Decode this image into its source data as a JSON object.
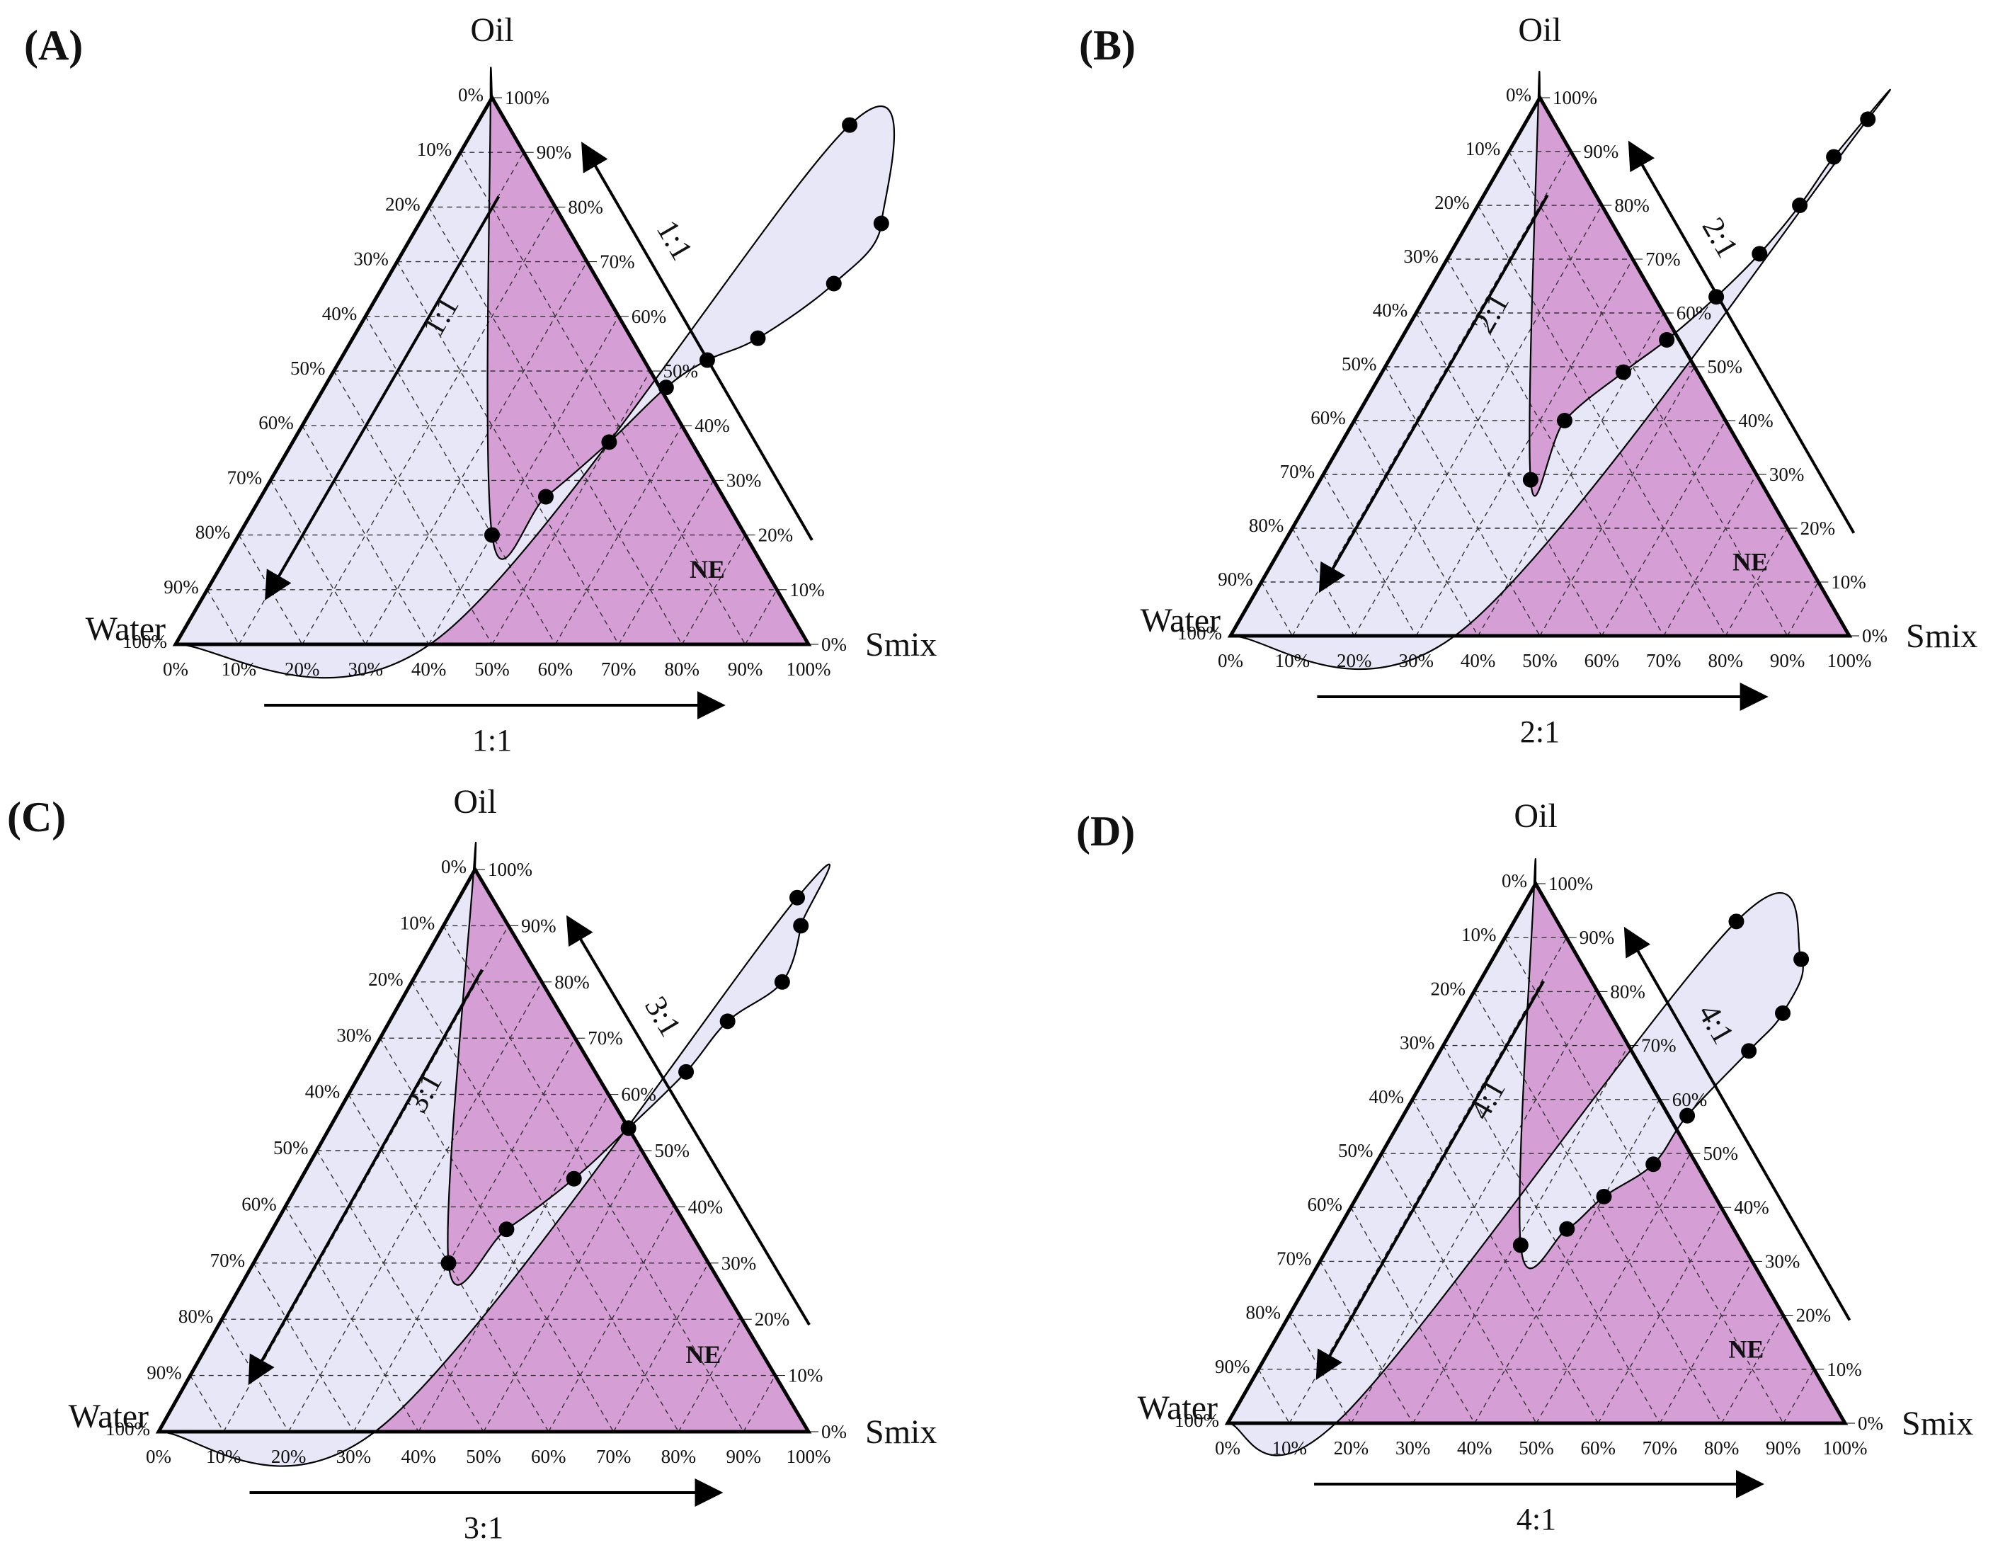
{
  "colors": {
    "single_phase_fill": "#d59fd6",
    "multi_phase_fill": "#e8e7f7",
    "outline": "#000000",
    "grid": "#333333",
    "point": "#000000"
  },
  "chart_data": [
    {
      "type": "ternary",
      "panel_label": "(A)",
      "vertices": {
        "top": "Oil",
        "left": "Water",
        "right": "Smix"
      },
      "tick_labels": [
        "0%",
        "10%",
        "20%",
        "30%",
        "40%",
        "50%",
        "60%",
        "70%",
        "80%",
        "90%",
        "100%"
      ],
      "ratio_label": "1:1",
      "region_label": "NE",
      "axis_ranges": {
        "oil": [
          0,
          100
        ],
        "water": [
          0,
          100
        ],
        "smix": [
          0,
          100
        ]
      },
      "grid": true,
      "boundary_points": [
        {
          "smix": 40,
          "oil": 20
        },
        {
          "smix": 45,
          "oil": 27
        },
        {
          "smix": 50,
          "oil": 37
        },
        {
          "smix": 54,
          "oil": 47
        },
        {
          "smix": 58,
          "oil": 52
        },
        {
          "smix": 64,
          "oil": 56
        },
        {
          "smix": 71,
          "oil": 66
        },
        {
          "smix": 73,
          "oil": 77
        },
        {
          "smix": 59,
          "oil": 95
        }
      ]
    },
    {
      "type": "ternary",
      "panel_label": "(B)",
      "vertices": {
        "top": "Oil",
        "left": "Water",
        "right": "Smix"
      },
      "tick_labels": [
        "0%",
        "10%",
        "20%",
        "30%",
        "40%",
        "50%",
        "60%",
        "70%",
        "80%",
        "90%",
        "100%"
      ],
      "ratio_label": "2:1",
      "region_label": "NE",
      "axis_ranges": {
        "oil": [
          0,
          100
        ],
        "water": [
          0,
          100
        ],
        "smix": [
          0,
          100
        ]
      },
      "grid": true,
      "boundary_points": [
        {
          "smix": 34,
          "oil": 29
        },
        {
          "smix": 34,
          "oil": 40
        },
        {
          "smix": 39,
          "oil": 49
        },
        {
          "smix": 43,
          "oil": 55
        },
        {
          "smix": 47,
          "oil": 63
        },
        {
          "smix": 50,
          "oil": 71
        },
        {
          "smix": 52,
          "oil": 80
        },
        {
          "smix": 53,
          "oil": 89
        },
        {
          "smix": 55,
          "oil": 96
        }
      ]
    },
    {
      "type": "ternary",
      "panel_label": "(C)",
      "vertices": {
        "top": "Oil",
        "left": "Water",
        "right": "Smix"
      },
      "tick_labels": [
        "0%",
        "10%",
        "20%",
        "30%",
        "40%",
        "50%",
        "60%",
        "70%",
        "80%",
        "90%",
        "100%"
      ],
      "ratio_label": "3:1",
      "region_label": "NE",
      "axis_ranges": {
        "oil": [
          0,
          100
        ],
        "water": [
          0,
          100
        ],
        "smix": [
          0,
          100
        ]
      },
      "grid": true,
      "boundary_points": [
        {
          "smix": 30,
          "oil": 30
        },
        {
          "smix": 36,
          "oil": 36
        },
        {
          "smix": 42,
          "oil": 45
        },
        {
          "smix": 46,
          "oil": 54
        },
        {
          "smix": 50,
          "oil": 64
        },
        {
          "smix": 52,
          "oil": 73
        },
        {
          "smix": 57,
          "oil": 80
        },
        {
          "smix": 55,
          "oil": 90
        },
        {
          "smix": 52,
          "oil": 95
        }
      ]
    },
    {
      "type": "ternary",
      "panel_label": "(D)",
      "vertices": {
        "top": "Oil",
        "left": "Water",
        "right": "Smix"
      },
      "tick_labels": [
        "0%",
        "10%",
        "20%",
        "30%",
        "40%",
        "50%",
        "60%",
        "70%",
        "80%",
        "90%",
        "100%"
      ],
      "ratio_label": "4:1",
      "region_label": "NE",
      "axis_ranges": {
        "oil": [
          0,
          100
        ],
        "water": [
          0,
          100
        ],
        "smix": [
          0,
          100
        ]
      },
      "grid": true,
      "boundary_points": [
        {
          "smix": 31,
          "oil": 33
        },
        {
          "smix": 37,
          "oil": 36
        },
        {
          "smix": 40,
          "oil": 42
        },
        {
          "smix": 45,
          "oil": 48
        },
        {
          "smix": 46,
          "oil": 57
        },
        {
          "smix": 50,
          "oil": 69
        },
        {
          "smix": 52,
          "oil": 76
        },
        {
          "smix": 50,
          "oil": 86
        },
        {
          "smix": 36,
          "oil": 93
        }
      ]
    }
  ]
}
